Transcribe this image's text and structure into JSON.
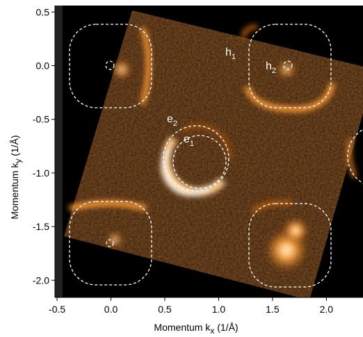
{
  "chart_data": {
    "type": "image",
    "xlabel": {
      "text": "Momentum k",
      "sub": "x",
      "unit": " (1/Å)"
    },
    "ylabel": {
      "text": "Momentum k",
      "sub": "y",
      "unit": " (1/Å)"
    },
    "xlim": [
      -0.52,
      2.34
    ],
    "ylim": [
      -2.16,
      0.56
    ],
    "xticks": [
      -0.5,
      {
        "value": 0,
        "label": "0.0"
      },
      0.5,
      {
        "value": 1,
        "label": "1.0"
      },
      1.5,
      {
        "value": 2,
        "label": "2.0"
      }
    ],
    "yticks": [
      0.5,
      {
        "value": 0,
        "label": "0.0"
      },
      -0.5,
      {
        "value": -1,
        "label": "-1.0"
      },
      -1.5,
      {
        "value": -2,
        "label": "-2.0"
      }
    ],
    "annotations": [
      {
        "text": "h",
        "sub": "1"
      },
      {
        "text": "h",
        "sub": "2"
      },
      {
        "text": "e",
        "sub": "2"
      },
      {
        "text": "e",
        "sub": "1"
      }
    ]
  }
}
